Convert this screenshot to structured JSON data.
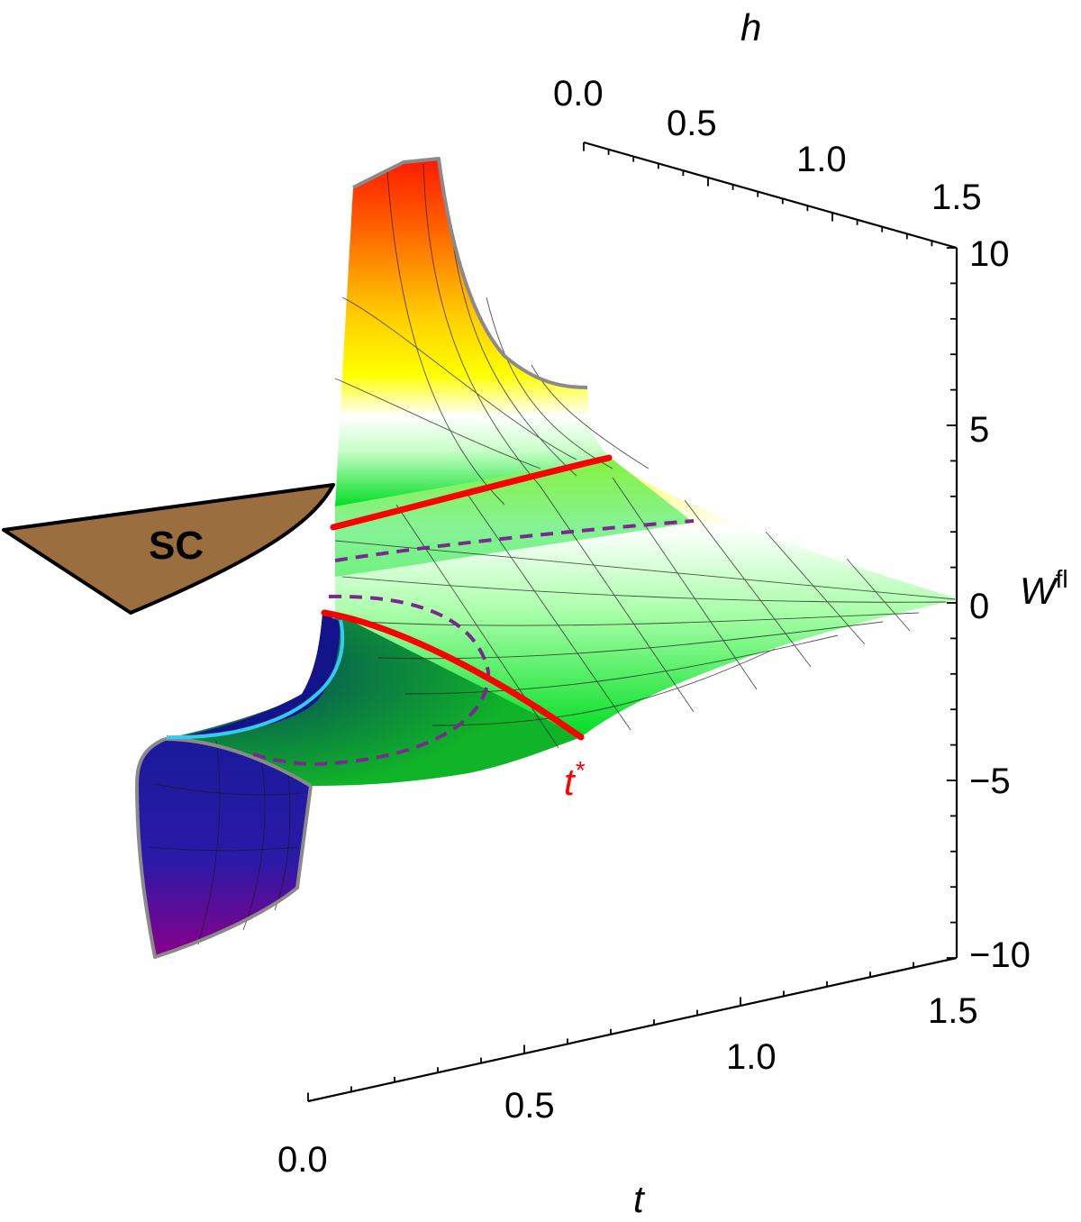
{
  "chart_data": {
    "type": "surface3d",
    "title": "",
    "x_axis": {
      "label": "t",
      "ticks": [
        "0.0",
        "0.5",
        "1.0",
        "1.5"
      ],
      "range": [
        0,
        1.5
      ]
    },
    "y_axis": {
      "label": "h",
      "ticks": [
        "0.0",
        "0.5",
        "1.0",
        "1.5"
      ],
      "range": [
        0,
        1.5
      ]
    },
    "z_axis": {
      "label": "W",
      "label_superscript": "fl",
      "ticks": [
        "10",
        "5",
        "0",
        "−5",
        "−10"
      ],
      "range": [
        -10,
        10
      ]
    },
    "annotations": {
      "region_label": "SC",
      "critical_line_label": "t",
      "critical_line_superscript": "*"
    },
    "colors": {
      "sc_region": "#9a6e3e",
      "critical_line": "#ff0000",
      "dashed_contour": "#7a2a8c",
      "boundary_arc": "#33ccee",
      "surface_high": "#ff1a00",
      "surface_mid": "#ffff00",
      "surface_flat": "#00dd22",
      "surface_low": "#1a1a9a",
      "surface_lowest": "#8a008a"
    }
  }
}
